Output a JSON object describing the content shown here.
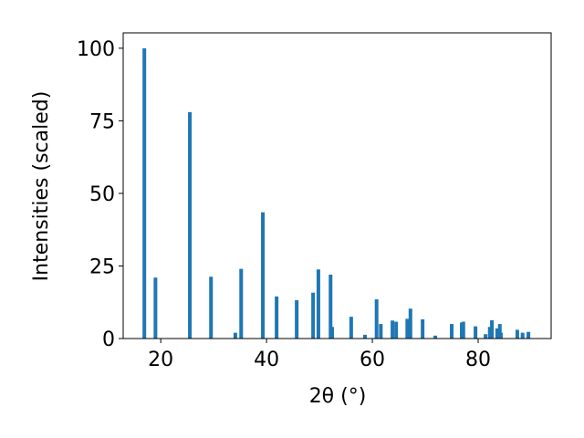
{
  "chart_data": {
    "type": "bar",
    "x_label": "2θ (°)",
    "y_label": "Intensities (scaled)",
    "x": [
      16.9,
      19.0,
      25.5,
      29.5,
      34.1,
      35.2,
      39.3,
      41.9,
      45.7,
      48.8,
      49.8,
      52.1,
      52.4,
      56.0,
      58.6,
      60.8,
      61.6,
      63.8,
      64.5,
      66.6,
      67.2,
      69.5,
      71.9,
      75.0,
      76.9,
      77.2,
      79.5,
      81.4,
      82.2,
      82.6,
      83.6,
      84.1,
      84.3,
      87.4,
      88.4,
      89.5
    ],
    "values": [
      100,
      21,
      78,
      21.3,
      2,
      24,
      43.5,
      14.5,
      13.2,
      15.8,
      23.8,
      22,
      4,
      7.5,
      1.3,
      13.5,
      5,
      6.2,
      5.8,
      6.8,
      10.3,
      6.6,
      1,
      5,
      5.5,
      5.8,
      4.2,
      1.5,
      4,
      6.3,
      3.5,
      5,
      2,
      3,
      2,
      2.3
    ],
    "color": "#1f77b4",
    "xlim": [
      12.9,
      93.8
    ],
    "xticks": [
      20,
      40,
      60,
      80
    ],
    "ylim": [
      0,
      105.3
    ],
    "yticks": [
      0,
      25,
      50,
      75,
      100
    ],
    "grid": false
  }
}
